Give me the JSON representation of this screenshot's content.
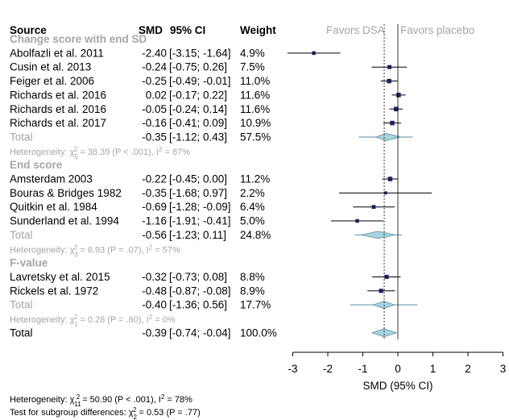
{
  "header": {
    "source": "Source",
    "smd": "SMD",
    "ci": "95% CI",
    "weight": "Weight",
    "favors_left": "Favors DSA",
    "favors_right": "Favors placebo"
  },
  "groups": [
    {
      "label": "Change score with end SD",
      "studies": [
        {
          "name": "Abolfazli et al. 2011",
          "smd": "-2.40",
          "ci": "[-3.15; -1.64]",
          "weight": "4.9%",
          "est": -2.4,
          "lo": -3.15,
          "hi": -1.64,
          "w": 4.9
        },
        {
          "name": "Cusin et al. 2013",
          "smd": "-0.24",
          "ci": "[-0.75; 0.26]",
          "weight": "7.5%",
          "est": -0.24,
          "lo": -0.75,
          "hi": 0.26,
          "w": 7.5
        },
        {
          "name": "Feiger et al. 2006",
          "smd": "-0.25",
          "ci": "[-0.49; -0.01]",
          "weight": "11.0%",
          "est": -0.25,
          "lo": -0.49,
          "hi": -0.01,
          "w": 11.0
        },
        {
          "name": "Richards et al. 2016",
          "smd": "0.02",
          "ci": "[-0.17; 0.22]",
          "weight": "11.6%",
          "est": 0.02,
          "lo": -0.17,
          "hi": 0.22,
          "w": 11.6
        },
        {
          "name": "Richards et al. 2016",
          "smd": "-0.05",
          "ci": "[-0.24; 0.14]",
          "weight": "11.6%",
          "est": -0.05,
          "lo": -0.24,
          "hi": 0.14,
          "w": 11.6
        },
        {
          "name": "Richards et al. 2017",
          "smd": "-0.16",
          "ci": "[-0.41; 0.09]",
          "weight": "10.9%",
          "est": -0.16,
          "lo": -0.41,
          "hi": 0.09,
          "w": 10.9
        }
      ],
      "total": {
        "label": "Total",
        "smd": "-0.35",
        "ci": "[-1.12; 0.43]",
        "weight": "57.5%",
        "est": -0.35,
        "lo": -0.62,
        "hi": 0.08,
        "pi_lo": -1.12,
        "pi_hi": 0.43
      },
      "heterogeneity": {
        "prefix": "Heterogeneity: χ",
        "df": "5",
        "text": " = 38.39 (P < .001), I",
        "i2": " = 87%"
      }
    },
    {
      "label": "End score",
      "studies": [
        {
          "name": "Amsterdam 2003",
          "smd": "-0.22",
          "ci": "[-0.45; 0.00]",
          "weight": "11.2%",
          "est": -0.22,
          "lo": -0.45,
          "hi": 0.0,
          "w": 11.2
        },
        {
          "name": "Bouras & Bridges 1982",
          "smd": "-0.35",
          "ci": "[-1.68; 0.97]",
          "weight": "2.2%",
          "est": -0.35,
          "lo": -1.68,
          "hi": 0.97,
          "w": 2.2
        },
        {
          "name": "Quitkin et al. 1984",
          "smd": "-0.69",
          "ci": "[-1.28; -0.09]",
          "weight": "6.4%",
          "est": -0.69,
          "lo": -1.28,
          "hi": -0.09,
          "w": 6.4
        },
        {
          "name": "Sunderland et al. 1994",
          "smd": "-1.16",
          "ci": "[-1.91; -0.41]",
          "weight": "5.0%",
          "est": -1.16,
          "lo": -1.91,
          "hi": -0.41,
          "w": 5.0
        }
      ],
      "total": {
        "label": "Total",
        "smd": "-0.56",
        "ci": "[-1.23; 0.11]",
        "weight": "24.8%",
        "est": -0.56,
        "lo": -1.05,
        "hi": -0.07,
        "pi_lo": -1.23,
        "pi_hi": 0.11
      },
      "heterogeneity": {
        "prefix": "Heterogeneity: χ",
        "df": "3",
        "text": " = 6.93 (P = .07), I",
        "i2": " = 57%"
      }
    },
    {
      "label": "F-value",
      "studies": [
        {
          "name": "Lavretsky et al. 2015",
          "smd": "-0.32",
          "ci": "[-0.73; 0.08]",
          "weight": "8.8%",
          "est": -0.32,
          "lo": -0.73,
          "hi": 0.08,
          "w": 8.8
        },
        {
          "name": "Rickels et al. 1972",
          "smd": "-0.48",
          "ci": "[-0.87; -0.08]",
          "weight": "8.9%",
          "est": -0.48,
          "lo": -0.87,
          "hi": -0.08,
          "w": 8.9
        }
      ],
      "total": {
        "label": "Total",
        "smd": "-0.40",
        "ci": "[-1.36; 0.56]",
        "weight": "17.7%",
        "est": -0.4,
        "lo": -0.7,
        "hi": -0.1,
        "pi_lo": -1.36,
        "pi_hi": 0.56
      },
      "heterogeneity": {
        "prefix": "Heterogeneity: χ",
        "df": "1",
        "text": " = 0.28 (P = .60), I",
        "i2": " = 0%"
      }
    }
  ],
  "overall": {
    "label": "Total",
    "smd": "-0.39",
    "ci": "[-0.74; -0.04]",
    "weight": "100.0%",
    "est": -0.39,
    "lo": -0.74,
    "hi": -0.04
  },
  "footer": {
    "line1": {
      "prefix": "Heterogeneity: χ",
      "df": "11",
      "text": " = 50.90 (P < .001), I",
      "i2": " = 78%"
    },
    "line2": {
      "prefix": "Test for subgroup differences: χ",
      "df": "2",
      "text": " = 0.53 (P = .77)"
    }
  },
  "chart_data": {
    "type": "forest",
    "xlabel": "SMD (95% CI)",
    "xlim": [
      -3,
      3
    ],
    "xticks": [
      -3,
      -2,
      -1,
      0,
      1,
      2,
      3
    ],
    "reference_lines": [
      0,
      -0.39
    ],
    "colors": {
      "diamond_fill": "#a9d3df",
      "diamond_stroke": "#5a8fa0",
      "square": "#1b1f5c",
      "grey_text": "#a6a6a6"
    }
  }
}
